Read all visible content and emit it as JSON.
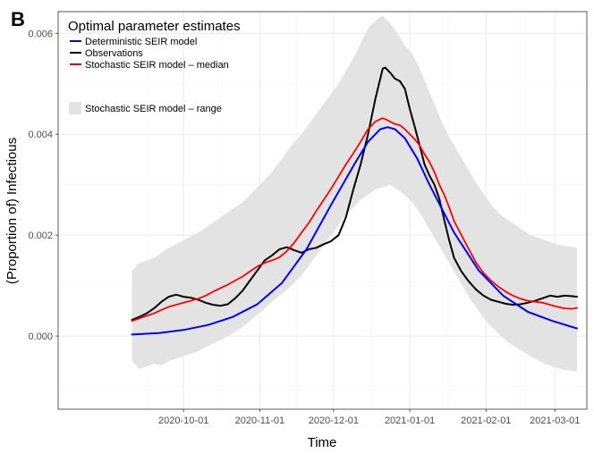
{
  "panel_label": "B",
  "chart_data": {
    "type": "line",
    "title": "",
    "xlabel": "Time",
    "ylabel": "(Proportion of) Infectious",
    "x_domain_days": [
      -21,
      194
    ],
    "x_origin_date": "2020-09-01",
    "ylim": [
      -0.00145,
      0.00643
    ],
    "y_ticks": [
      {
        "value": 0.0,
        "label": "0.000"
      },
      {
        "value": 0.002,
        "label": "0.002"
      },
      {
        "value": 0.004,
        "label": "0.004"
      },
      {
        "value": 0.006,
        "label": "0.006"
      }
    ],
    "x_ticks": [
      {
        "day": 30,
        "label": "2020-10-01"
      },
      {
        "day": 61,
        "label": "2020-11-01"
      },
      {
        "day": 91,
        "label": "2020-12-01"
      },
      {
        "day": 122,
        "label": "2021-01-01"
      },
      {
        "day": 153,
        "label": "2021-02-01"
      },
      {
        "day": 181,
        "label": "2021-03-01"
      }
    ],
    "legend": {
      "title": "Optimal parameter estimates",
      "placement": "top-left",
      "entries": [
        {
          "label": "Deterministic SEIR model",
          "color": "#0000ff",
          "kind": "line"
        },
        {
          "label": "Observations",
          "color": "#000000",
          "kind": "line"
        },
        {
          "label": "Stochastic SEIR model – median",
          "color": "#ff0000",
          "kind": "line"
        },
        {
          "label": "Stochastic SEIR model – range",
          "color": "#e3e3e3",
          "kind": "fill"
        }
      ]
    },
    "colors": {
      "deterministic": "#0000ff",
      "observations": "#000000",
      "median": "#ff0000",
      "range": "#e3e3e3"
    },
    "series": {
      "deterministic": {
        "name": "Deterministic SEIR model",
        "x": [
          9,
          20,
          30,
          40,
          50,
          60,
          70,
          80,
          90,
          100,
          105,
          110,
          113,
          116,
          120,
          125,
          130,
          140,
          150,
          160,
          170,
          180,
          190
        ],
        "y": [
          3e-05,
          6e-05,
          0.00012,
          0.00022,
          0.00038,
          0.00063,
          0.00105,
          0.00172,
          0.0026,
          0.00345,
          0.00385,
          0.0041,
          0.00414,
          0.0041,
          0.00392,
          0.00352,
          0.003,
          0.00205,
          0.0013,
          0.0008,
          0.00048,
          0.0003,
          0.00015
        ]
      },
      "observations": {
        "name": "Observations",
        "x": [
          9,
          12,
          15,
          18,
          21,
          24,
          27,
          30,
          33,
          36,
          39,
          42,
          45,
          48,
          51,
          54,
          57,
          60,
          63,
          66,
          69,
          72,
          75,
          78,
          81,
          84,
          87,
          90,
          93,
          96,
          99,
          102,
          105,
          108,
          111,
          112,
          114,
          116,
          118,
          120,
          122,
          124,
          126,
          128,
          130,
          132,
          134,
          136,
          138,
          140,
          143,
          146,
          149,
          152,
          155,
          158,
          161,
          164,
          167,
          170,
          173,
          176,
          179,
          182,
          185,
          188,
          190
        ],
        "y": [
          0.00032,
          0.00038,
          0.00045,
          0.00055,
          0.00068,
          0.00078,
          0.00082,
          0.00078,
          0.00076,
          0.00072,
          0.00066,
          0.00062,
          0.0006,
          0.00063,
          0.00075,
          0.0009,
          0.0011,
          0.0013,
          0.0015,
          0.0016,
          0.00172,
          0.00176,
          0.0017,
          0.00165,
          0.00172,
          0.00175,
          0.00182,
          0.00188,
          0.002,
          0.00235,
          0.0029,
          0.0034,
          0.004,
          0.0047,
          0.0053,
          0.00532,
          0.00522,
          0.0051,
          0.00505,
          0.0049,
          0.0045,
          0.00415,
          0.00378,
          0.0034,
          0.00318,
          0.003,
          0.00272,
          0.0023,
          0.0019,
          0.00155,
          0.00128,
          0.00108,
          0.00092,
          0.0008,
          0.00072,
          0.00068,
          0.00064,
          0.00062,
          0.00063,
          0.00066,
          0.0007,
          0.00075,
          0.0008,
          0.00078,
          0.0008,
          0.00079,
          0.00078
        ]
      },
      "median": {
        "name": "Stochastic SEIR model – median",
        "x": [
          9,
          12,
          15,
          18,
          21,
          24,
          27,
          30,
          33,
          36,
          39,
          42,
          45,
          48,
          51,
          54,
          57,
          60,
          63,
          66,
          69,
          72,
          75,
          78,
          81,
          84,
          87,
          90,
          93,
          96,
          99,
          102,
          105,
          108,
          111,
          112,
          114,
          116,
          118,
          120,
          122,
          124,
          126,
          128,
          130,
          132,
          134,
          136,
          138,
          140,
          143,
          146,
          149,
          152,
          155,
          158,
          161,
          164,
          167,
          170,
          173,
          176,
          179,
          182,
          185,
          188,
          190
        ],
        "y": [
          0.0003,
          0.00035,
          0.0004,
          0.00045,
          0.00052,
          0.00058,
          0.00062,
          0.00066,
          0.0007,
          0.00074,
          0.0008,
          0.00088,
          0.00095,
          0.00102,
          0.0011,
          0.00118,
          0.00128,
          0.00138,
          0.00145,
          0.0015,
          0.00156,
          0.00168,
          0.00185,
          0.00205,
          0.00225,
          0.00248,
          0.0027,
          0.00292,
          0.00316,
          0.0034,
          0.00362,
          0.00385,
          0.0041,
          0.00425,
          0.00432,
          0.0043,
          0.00425,
          0.0042,
          0.00418,
          0.0041,
          0.004,
          0.0039,
          0.00378,
          0.0036,
          0.00345,
          0.00325,
          0.003,
          0.0028,
          0.00255,
          0.00228,
          0.002,
          0.00172,
          0.00145,
          0.00125,
          0.0011,
          0.00098,
          0.00088,
          0.0008,
          0.00074,
          0.0007,
          0.00068,
          0.00066,
          0.00062,
          0.00058,
          0.00055,
          0.00054,
          0.00056
        ]
      },
      "range": {
        "name": "Stochastic SEIR model – range",
        "x": [
          9,
          12,
          15,
          18,
          21,
          24,
          27,
          30,
          33,
          36,
          39,
          42,
          45,
          48,
          51,
          54,
          57,
          60,
          63,
          66,
          69,
          72,
          75,
          78,
          81,
          84,
          87,
          90,
          93,
          96,
          99,
          102,
          105,
          108,
          111,
          114,
          117,
          120,
          123,
          126,
          129,
          132,
          135,
          138,
          141,
          144,
          147,
          150,
          153,
          156,
          159,
          162,
          165,
          168,
          171,
          174,
          177,
          180,
          183,
          186,
          190
        ],
        "lower": [
          -0.0005,
          -0.00065,
          -0.0006,
          -0.00055,
          -0.00058,
          -0.0005,
          -0.00045,
          -0.0004,
          -0.00035,
          -0.0003,
          -0.00022,
          -0.00015,
          -8e-05,
          0.0,
          8e-05,
          0.00018,
          0.0003,
          0.00042,
          0.00055,
          0.00068,
          0.0008,
          0.00092,
          0.00105,
          0.0012,
          0.0014,
          0.0016,
          0.0018,
          0.002,
          0.0022,
          0.0024,
          0.00255,
          0.0027,
          0.0028,
          0.0029,
          0.00295,
          0.003,
          0.0029,
          0.0028,
          0.00265,
          0.00245,
          0.0022,
          0.00195,
          0.0017,
          0.00145,
          0.0012,
          0.00095,
          0.0007,
          0.0005,
          0.0003,
          0.00015,
          0.0,
          -0.00012,
          -0.00022,
          -0.0003,
          -0.0004,
          -0.00048,
          -0.00055,
          -0.0006,
          -0.00065,
          -0.00068,
          -0.0007
        ],
        "upper": [
          0.0013,
          0.00145,
          0.0015,
          0.00155,
          0.00165,
          0.00175,
          0.00182,
          0.0019,
          0.00198,
          0.00205,
          0.00215,
          0.00225,
          0.00235,
          0.00245,
          0.00255,
          0.00265,
          0.0028,
          0.00295,
          0.0031,
          0.00325,
          0.00345,
          0.00365,
          0.00385,
          0.004,
          0.0042,
          0.0044,
          0.0046,
          0.0048,
          0.005,
          0.00525,
          0.0055,
          0.0058,
          0.0061,
          0.00625,
          0.00635,
          0.0062,
          0.006,
          0.00575,
          0.0056,
          0.0053,
          0.00495,
          0.0046,
          0.00425,
          0.00395,
          0.0037,
          0.00345,
          0.0032,
          0.00295,
          0.00275,
          0.00255,
          0.0024,
          0.0023,
          0.0022,
          0.0021,
          0.002,
          0.00195,
          0.0019,
          0.00185,
          0.0018,
          0.00178,
          0.00175
        ]
      }
    }
  }
}
